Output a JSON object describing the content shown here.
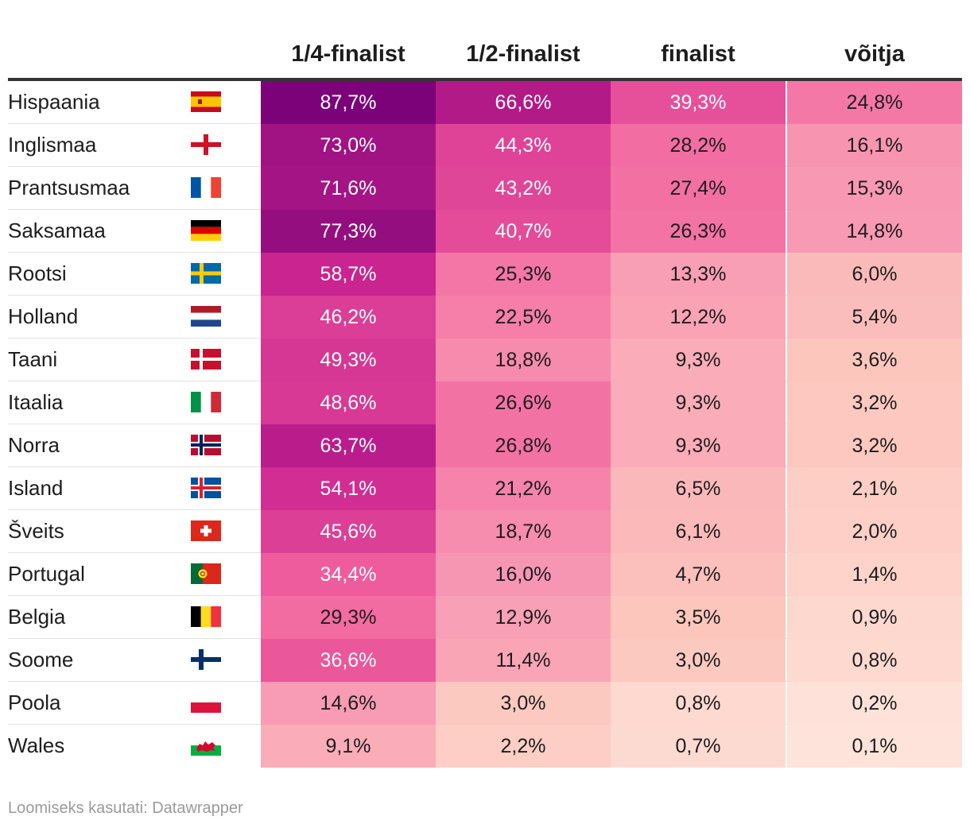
{
  "chart_data": {
    "type": "table",
    "columns": [
      "1/4-finalist",
      "1/2-finalist",
      "finalist",
      "võitja"
    ],
    "rows": [
      {
        "country": "Hispaania",
        "flag": "spain-flag-icon",
        "values": [
          "87,7%",
          "66,6%",
          "39,3%",
          "24,8%"
        ]
      },
      {
        "country": "Inglismaa",
        "flag": "england-flag-icon",
        "values": [
          "73,0%",
          "44,3%",
          "28,2%",
          "16,1%"
        ]
      },
      {
        "country": "Prantsusmaa",
        "flag": "france-flag-icon",
        "values": [
          "71,6%",
          "43,2%",
          "27,4%",
          "15,3%"
        ]
      },
      {
        "country": "Saksamaa",
        "flag": "germany-flag-icon",
        "values": [
          "77,3%",
          "40,7%",
          "26,3%",
          "14,8%"
        ]
      },
      {
        "country": "Rootsi",
        "flag": "sweden-flag-icon",
        "values": [
          "58,7%",
          "25,3%",
          "13,3%",
          "6,0%"
        ]
      },
      {
        "country": "Holland",
        "flag": "netherlands-flag-icon",
        "values": [
          "46,2%",
          "22,5%",
          "12,2%",
          "5,4%"
        ]
      },
      {
        "country": "Taani",
        "flag": "denmark-flag-icon",
        "values": [
          "49,3%",
          "18,8%",
          "9,3%",
          "3,6%"
        ]
      },
      {
        "country": "Itaalia",
        "flag": "italy-flag-icon",
        "values": [
          "48,6%",
          "26,6%",
          "9,3%",
          "3,2%"
        ]
      },
      {
        "country": "Norra",
        "flag": "norway-flag-icon",
        "values": [
          "63,7%",
          "26,8%",
          "9,3%",
          "3,2%"
        ]
      },
      {
        "country": "Island",
        "flag": "iceland-flag-icon",
        "values": [
          "54,1%",
          "21,2%",
          "6,5%",
          "2,1%"
        ]
      },
      {
        "country": "Šveits",
        "flag": "switzerland-flag-icon",
        "values": [
          "45,6%",
          "18,7%",
          "6,1%",
          "2,0%"
        ]
      },
      {
        "country": "Portugal",
        "flag": "portugal-flag-icon",
        "values": [
          "34,4%",
          "16,0%",
          "4,7%",
          "1,4%"
        ]
      },
      {
        "country": "Belgia",
        "flag": "belgium-flag-icon",
        "values": [
          "29,3%",
          "12,9%",
          "3,5%",
          "0,9%"
        ]
      },
      {
        "country": "Soome",
        "flag": "finland-flag-icon",
        "values": [
          "36,6%",
          "11,4%",
          "3,0%",
          "0,8%"
        ]
      },
      {
        "country": "Poola",
        "flag": "poland-flag-icon",
        "values": [
          "14,6%",
          "3,0%",
          "0,8%",
          "0,2%"
        ]
      },
      {
        "country": "Wales",
        "flag": "wales-flag-icon",
        "values": [
          "9,1%",
          "2,2%",
          "0,7%",
          "0,1%"
        ]
      }
    ],
    "color_scale": [
      "#fee9e0",
      "#fcc6bd",
      "#f89cb4",
      "#f1629e",
      "#cc2590",
      "#760077"
    ]
  },
  "footer": {
    "source": "Loomiseks kasutati: Datawrapper"
  }
}
